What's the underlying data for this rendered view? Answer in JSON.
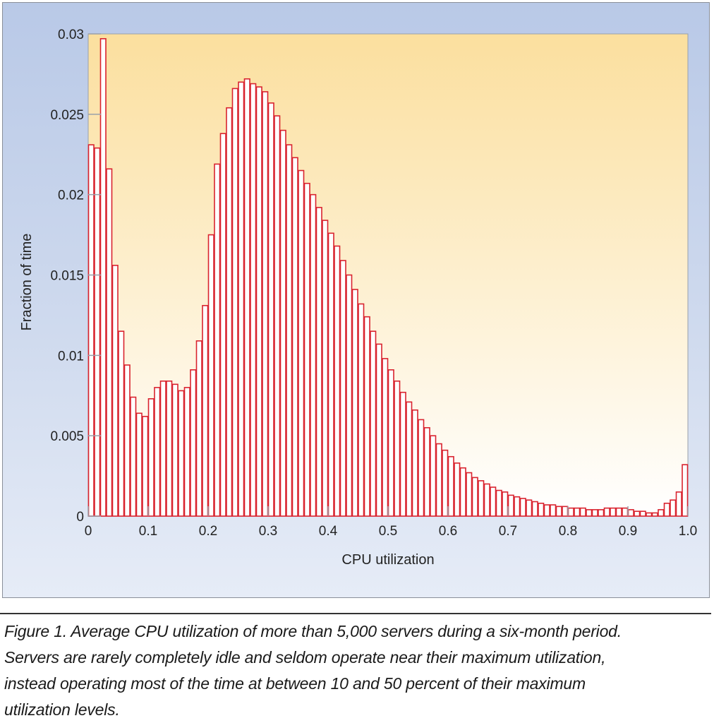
{
  "chart_data": {
    "type": "bar",
    "title": "",
    "xlabel": "CPU utilization",
    "ylabel": "Fraction of time",
    "xlim": [
      0,
      1.0
    ],
    "ylim": [
      0,
      0.03
    ],
    "xticks": [
      "0",
      "0.1",
      "0.2",
      "0.3",
      "0.4",
      "0.5",
      "0.6",
      "0.7",
      "0.8",
      "0.9",
      "1.0"
    ],
    "yticks": [
      "0",
      "0.005",
      "0.01",
      "0.015",
      "0.02",
      "0.025",
      "0.03"
    ],
    "grid": false,
    "bin_width": 0.01,
    "bin_starts": [
      0.0,
      0.01,
      0.02,
      0.03,
      0.04,
      0.05,
      0.06,
      0.07,
      0.08,
      0.09,
      0.1,
      0.11,
      0.12,
      0.13,
      0.14,
      0.15,
      0.16,
      0.17,
      0.18,
      0.19,
      0.2,
      0.21,
      0.22,
      0.23,
      0.24,
      0.25,
      0.26,
      0.27,
      0.28,
      0.29,
      0.3,
      0.31,
      0.32,
      0.33,
      0.34,
      0.35,
      0.36,
      0.37,
      0.38,
      0.39,
      0.4,
      0.41,
      0.42,
      0.43,
      0.44,
      0.45,
      0.46,
      0.47,
      0.48,
      0.49,
      0.5,
      0.51,
      0.52,
      0.53,
      0.54,
      0.55,
      0.56,
      0.57,
      0.58,
      0.59,
      0.6,
      0.61,
      0.62,
      0.63,
      0.64,
      0.65,
      0.66,
      0.67,
      0.68,
      0.69,
      0.7,
      0.71,
      0.72,
      0.73,
      0.74,
      0.75,
      0.76,
      0.77,
      0.78,
      0.79,
      0.8,
      0.81,
      0.82,
      0.83,
      0.84,
      0.85,
      0.86,
      0.87,
      0.88,
      0.89,
      0.9,
      0.91,
      0.92,
      0.93,
      0.94,
      0.95,
      0.96,
      0.97,
      0.98,
      0.99
    ],
    "values": [
      0.0231,
      0.0229,
      0.0297,
      0.0216,
      0.0156,
      0.0115,
      0.0094,
      0.0074,
      0.0064,
      0.0062,
      0.0073,
      0.008,
      0.0084,
      0.0084,
      0.0082,
      0.0078,
      0.008,
      0.0091,
      0.0109,
      0.0131,
      0.0175,
      0.0219,
      0.0238,
      0.0254,
      0.0266,
      0.027,
      0.0272,
      0.0269,
      0.0267,
      0.0264,
      0.0257,
      0.0249,
      0.024,
      0.0231,
      0.0223,
      0.0215,
      0.0207,
      0.02,
      0.0192,
      0.0184,
      0.0176,
      0.0168,
      0.0159,
      0.015,
      0.0141,
      0.0132,
      0.0124,
      0.0115,
      0.0107,
      0.0098,
      0.0091,
      0.0084,
      0.0077,
      0.0071,
      0.0066,
      0.006,
      0.0055,
      0.005,
      0.0045,
      0.0041,
      0.0037,
      0.0033,
      0.003,
      0.0027,
      0.0024,
      0.0022,
      0.002,
      0.0018,
      0.0016,
      0.0015,
      0.0013,
      0.0012,
      0.0011,
      0.001,
      0.0009,
      0.0008,
      0.0007,
      0.0007,
      0.0006,
      0.0006,
      0.0005,
      0.0005,
      0.0005,
      0.0004,
      0.0004,
      0.0004,
      0.0005,
      0.0005,
      0.0005,
      0.0005,
      0.0004,
      0.0003,
      0.0003,
      0.0002,
      0.0002,
      0.0004,
      0.0008,
      0.001,
      0.0015,
      0.0032
    ]
  },
  "colors": {
    "bar_stroke": "#d9232e",
    "bar_fill": "#ffffff",
    "plot_bg_top": "#fbdf9e",
    "plot_bg_bottom": "#ffffff",
    "panel_bg": "#c6d3ec"
  },
  "caption": {
    "lines": [
      "Figure 1. Average CPU utilization of more than 5,000 servers during a six-month period.",
      "Servers are rarely completely idle and seldom operate near their maximum utilization,",
      "instead operating most of the time at between 10 and 50 percent of their maximum",
      "utilization levels."
    ]
  }
}
